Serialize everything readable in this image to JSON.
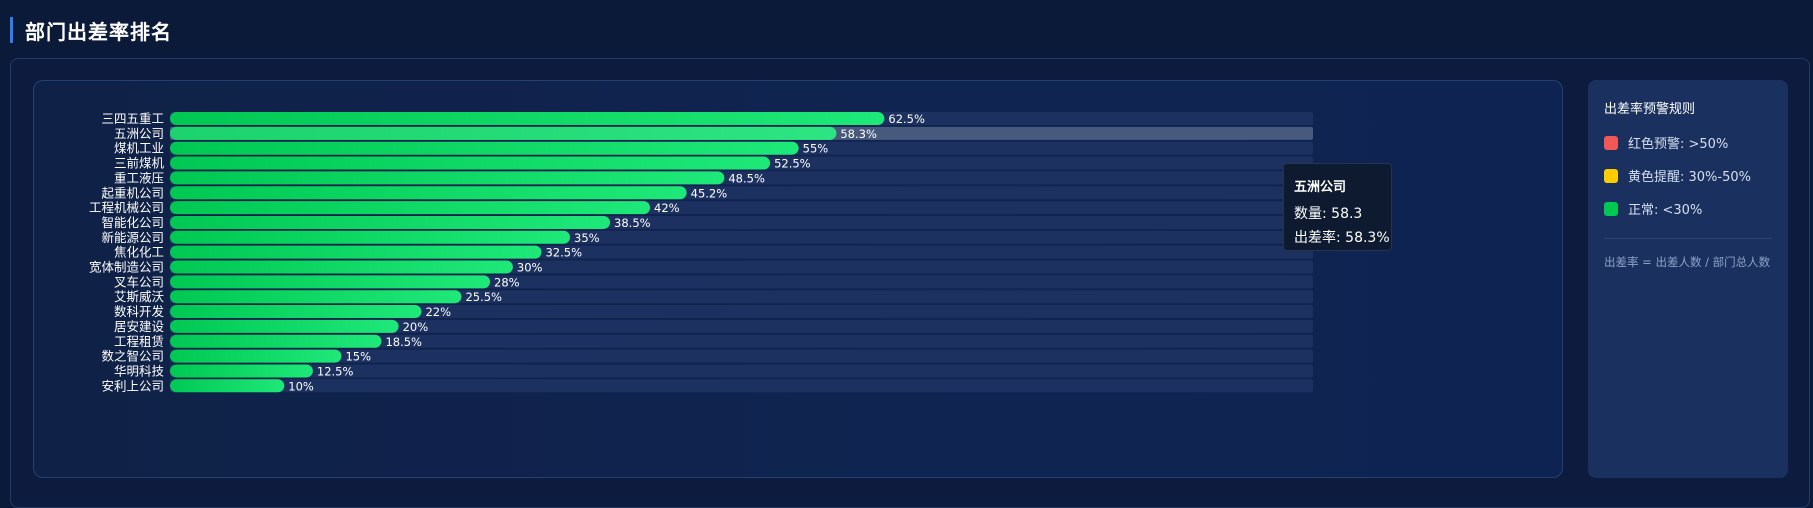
{
  "header": {
    "title": "部门出差率排名"
  },
  "chart_data": {
    "type": "bar",
    "orientation": "horizontal",
    "categories": [
      "三四五重工",
      "五洲公司",
      "煤机工业",
      "三前煤机",
      "重工液压",
      "起重机公司",
      "工程机械公司",
      "智能化公司",
      "新能源公司",
      "焦化化工",
      "宽体制造公司",
      "叉车公司",
      "艾斯威沃",
      "数科开发",
      "居安建设",
      "工程租赁",
      "数之智公司",
      "华明科技",
      "安利上公司"
    ],
    "values": [
      62.5,
      58.3,
      55,
      52.5,
      48.5,
      45.2,
      42,
      38.5,
      35,
      32.5,
      30,
      28,
      25.5,
      22,
      20,
      18.5,
      15,
      12.5,
      10
    ],
    "value_labels": [
      "62.5%",
      "58.3%",
      "55%",
      "52.5%",
      "48.5%",
      "45.2%",
      "42%",
      "38.5%",
      "35%",
      "32.5%",
      "30%",
      "28%",
      "25.5%",
      "22%",
      "20%",
      "18.5%",
      "15%",
      "12.5%",
      "10%"
    ],
    "xlim": [
      0,
      100
    ],
    "grid": false,
    "bar_color_start": "#00c853",
    "bar_color_end": "#1ee878",
    "highlighted_index": 1,
    "tooltip": {
      "title": "五洲公司",
      "count_label": "数量:",
      "count_value": "58.3",
      "rate_label": "出差率:",
      "rate_value": "58.3%"
    }
  },
  "legend": {
    "title": "出差率预警规则",
    "items": [
      {
        "label": "红色预警: >50%",
        "color": "#f25757"
      },
      {
        "label": "黄色提醒: 30%-50%",
        "color": "#ffcc00"
      },
      {
        "label": "正常: <30%",
        "color": "#00c853"
      }
    ],
    "note": "出差率 = 出差人数 / 部门总人数"
  }
}
